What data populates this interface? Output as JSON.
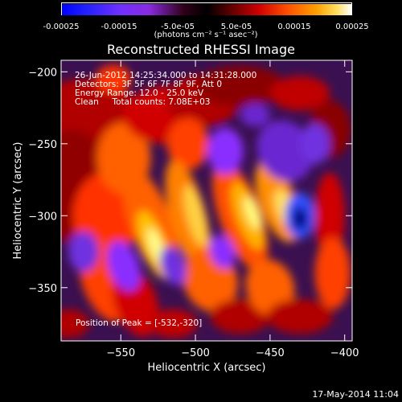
{
  "chart_data": {
    "type": "heatmap",
    "title": "Reconstructed RHESSI Image",
    "xlabel": "Heliocentric X (arcsec)",
    "ylabel": "Heliocentric Y (arcsec)",
    "xlim": [
      -590,
      -395
    ],
    "ylim": [
      -387,
      -192
    ],
    "x_ticks": [
      -550,
      -500,
      -450,
      -400
    ],
    "y_ticks": [
      -200,
      -250,
      -300,
      -350
    ],
    "colorbar": {
      "range": [
        -0.00025,
        0.00025
      ],
      "ticks": [
        "-0.00025",
        "-0.00015",
        "-5.0e-05",
        "5.0e-05",
        "0.00015",
        "0.00025"
      ],
      "tick_values": [
        -0.00025,
        -0.00015,
        -5e-05,
        5e-05,
        0.00015,
        0.00025
      ],
      "unit_label": "(photons cm⁻² s⁻¹ asec⁻²)"
    },
    "colormap": [
      "#000000",
      "#1a0a60",
      "#2810d0",
      "#8a2fff",
      "#c040ff",
      "#3a1050",
      "#6a0010",
      "#b00000",
      "#ff2000",
      "#ff7000",
      "#ffc000",
      "#ffffe0"
    ],
    "annotations": {
      "time_range": "26-Jun-2012 14:25:34.000 to 14:31:28.000",
      "detectors": "Detectors: 3F 5F 6F 7F 8F 9F, Att 0",
      "energy": "Energy Range: 12.0 - 25.0 keV",
      "method": "Clean     Total counts: 7.08E+03",
      "peak": "Position of Peak = [-532,-320]"
    },
    "peak_position": [
      -532,
      -320
    ]
  },
  "footer": {
    "date": "17-May-2014 11:04"
  }
}
